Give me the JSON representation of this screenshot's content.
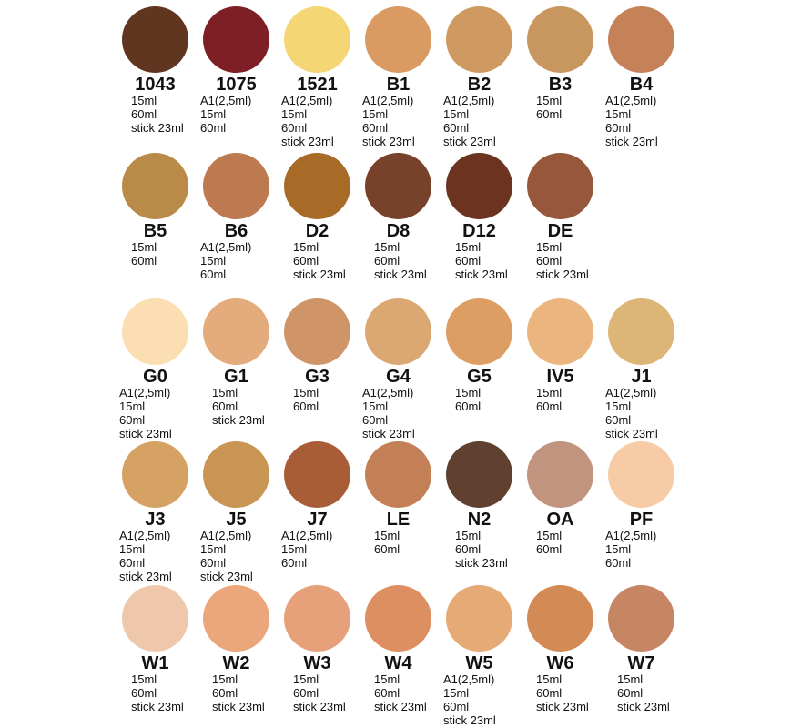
{
  "rows": [
    [
      {
        "code": "1043",
        "color": "#603620",
        "sizes": [
          "15ml",
          "60ml",
          "stick 23ml"
        ]
      },
      {
        "code": "1075",
        "color": "#7e1f26",
        "sizes": [
          "A1(2,5ml)",
          "15ml",
          "60ml"
        ]
      },
      {
        "code": "1521",
        "color": "#f5d675",
        "sizes": [
          "A1(2,5ml)",
          "15ml",
          "60ml",
          "stick 23ml"
        ]
      },
      {
        "code": "B1",
        "color": "#d99b62",
        "sizes": [
          "A1(2,5ml)",
          "15ml",
          "60ml",
          "stick 23ml"
        ]
      },
      {
        "code": "B2",
        "color": "#cf9a62",
        "sizes": [
          "A1(2,5ml)",
          "15ml",
          "60ml",
          "stick 23ml"
        ]
      },
      {
        "code": "B3",
        "color": "#c8965f",
        "sizes": [
          "15ml",
          "60ml"
        ]
      },
      {
        "code": "B4",
        "color": "#c58259",
        "sizes": [
          "A1(2,5ml)",
          "15ml",
          "60ml",
          "stick 23ml"
        ]
      }
    ],
    [
      {
        "code": "B5",
        "color": "#b98a48",
        "sizes": [
          "15ml",
          "60ml"
        ]
      },
      {
        "code": "B6",
        "color": "#bd7a50",
        "sizes": [
          "A1(2,5ml)",
          "15ml",
          "60ml"
        ]
      },
      {
        "code": "D2",
        "color": "#a86a27",
        "sizes": [
          "15ml",
          "60ml",
          "stick 23ml"
        ]
      },
      {
        "code": "D8",
        "color": "#78412b",
        "sizes": [
          "15ml",
          "60ml",
          "stick 23ml"
        ]
      },
      {
        "code": "D12",
        "color": "#6c3420",
        "sizes": [
          "15ml",
          "60ml",
          "stick 23ml"
        ]
      },
      {
        "code": "DE",
        "color": "#97573b",
        "sizes": [
          "15ml",
          "60ml",
          "stick 23ml"
        ]
      }
    ],
    [
      {
        "code": "G0",
        "color": "#fbdfb3",
        "sizes": [
          "A1(2,5ml)",
          "15ml",
          "60ml",
          "stick 23ml"
        ]
      },
      {
        "code": "G1",
        "color": "#e4ab7c",
        "sizes": [
          "15ml",
          "60ml",
          "stick 23ml"
        ]
      },
      {
        "code": "G3",
        "color": "#cf9569",
        "sizes": [
          "15ml",
          "60ml"
        ]
      },
      {
        "code": "G4",
        "color": "#dba874",
        "sizes": [
          "A1(2,5ml)",
          "15ml",
          "60ml",
          "stick 23ml"
        ]
      },
      {
        "code": "G5",
        "color": "#dd9e64",
        "sizes": [
          "15ml",
          "60ml"
        ]
      },
      {
        "code": "IV5",
        "color": "#eab57f",
        "sizes": [
          "15ml",
          "60ml"
        ]
      },
      {
        "code": "J1",
        "color": "#ddb577",
        "sizes": [
          "A1(2,5ml)",
          "15ml",
          "60ml",
          "stick 23ml"
        ]
      }
    ],
    [
      {
        "code": "J3",
        "color": "#d6a264",
        "sizes": [
          "A1(2,5ml)",
          "15ml",
          "60ml",
          "stick 23ml"
        ]
      },
      {
        "code": "J5",
        "color": "#c99555",
        "sizes": [
          "A1(2,5ml)",
          "15ml",
          "60ml",
          "stick 23ml"
        ]
      },
      {
        "code": "J7",
        "color": "#a95d36",
        "sizes": [
          "A1(2,5ml)",
          "15ml",
          "60ml"
        ]
      },
      {
        "code": "LE",
        "color": "#c37f56",
        "sizes": [
          "15ml",
          "60ml"
        ]
      },
      {
        "code": "N2",
        "color": "#60402f",
        "sizes": [
          "15ml",
          "60ml",
          "stick 23ml"
        ]
      },
      {
        "code": "OA",
        "color": "#c19480",
        "sizes": [
          "15ml",
          "60ml"
        ]
      },
      {
        "code": "PF",
        "color": "#f6cba6",
        "sizes": [
          "A1(2,5ml)",
          "15ml",
          "60ml"
        ]
      }
    ],
    [
      {
        "code": "W1",
        "color": "#efc8ab",
        "sizes": [
          "15ml",
          "60ml",
          "stick 23ml"
        ]
      },
      {
        "code": "W2",
        "color": "#eca67c",
        "sizes": [
          "15ml",
          "60ml",
          "stick 23ml"
        ]
      },
      {
        "code": "W3",
        "color": "#e6a07a",
        "sizes": [
          "15ml",
          "60ml",
          "stick 23ml"
        ]
      },
      {
        "code": "W4",
        "color": "#dd8f62",
        "sizes": [
          "15ml",
          "60ml",
          "stick 23ml"
        ]
      },
      {
        "code": "W5",
        "color": "#e6aa77",
        "sizes": [
          "A1(2,5ml)",
          "15ml",
          "60ml",
          "stick 23ml"
        ]
      },
      {
        "code": "W6",
        "color": "#d38a55",
        "sizes": [
          "15ml",
          "60ml",
          "stick 23ml"
        ]
      },
      {
        "code": "W7",
        "color": "#c68664",
        "sizes": [
          "15ml",
          "60ml",
          "stick 23ml"
        ]
      }
    ]
  ]
}
